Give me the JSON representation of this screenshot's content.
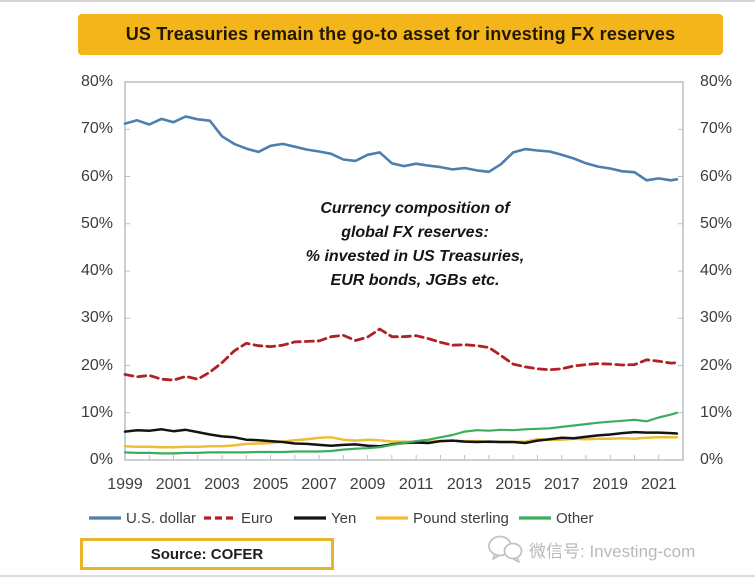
{
  "banner": {
    "title": "US Treasuries remain the go-to asset for investing FX reserves",
    "bg_color": "#F3B51A"
  },
  "annotation": {
    "lines": [
      "Currency composition of",
      "global FX reserves:",
      "% invested in US Treasuries,",
      "EUR bonds, JGBs etc."
    ]
  },
  "source_box": {
    "label": "Source: COFER",
    "border_color": "#E9B32B"
  },
  "watermark": {
    "icon": "wechat-icon",
    "text": "微信号: Investing-com",
    "color": "#b9b9b9"
  },
  "chart_data": {
    "type": "line",
    "title": "",
    "xlabel": "",
    "ylabel": "",
    "grid": false,
    "legend_position": "bottom",
    "xlim": [
      1999,
      2022
    ],
    "ylim": [
      0,
      80
    ],
    "x_ticks": [
      "1999",
      "2001",
      "2003",
      "2005",
      "2007",
      "2009",
      "2011",
      "2013",
      "2015",
      "2017",
      "2019",
      "2021"
    ],
    "y_ticks": [
      "0%",
      "10%",
      "20%",
      "30%",
      "40%",
      "50%",
      "60%",
      "70%",
      "80%"
    ],
    "x": [
      1999,
      1999.5,
      2000,
      2000.5,
      2001,
      2001.5,
      2002,
      2002.5,
      2003,
      2003.5,
      2004,
      2004.5,
      2005,
      2005.5,
      2006,
      2006.5,
      2007,
      2007.5,
      2008,
      2008.5,
      2009,
      2009.5,
      2010,
      2010.5,
      2011,
      2011.5,
      2012,
      2012.5,
      2013,
      2013.5,
      2014,
      2014.5,
      2015,
      2015.5,
      2016,
      2016.5,
      2017,
      2017.5,
      2018,
      2018.5,
      2019,
      2019.5,
      2020,
      2020.5,
      2021,
      2021.5,
      2021.75
    ],
    "series": [
      {
        "name": "U.S. dollar",
        "color": "#4D7FAE",
        "dash": "solid",
        "values": [
          71.2,
          71.9,
          71.0,
          72.2,
          71.5,
          72.7,
          72.1,
          71.8,
          68.5,
          66.9,
          65.9,
          65.2,
          66.5,
          66.9,
          66.3,
          65.7,
          65.3,
          64.8,
          63.6,
          63.3,
          64.6,
          65.1,
          62.8,
          62.2,
          62.7,
          62.3,
          62.0,
          61.5,
          61.8,
          61.3,
          61.0,
          62.6,
          65.1,
          65.8,
          65.5,
          65.3,
          64.6,
          63.8,
          62.8,
          62.1,
          61.7,
          61.1,
          60.9,
          59.2,
          59.6,
          59.2,
          59.4
        ]
      },
      {
        "name": "Euro",
        "color": "#B02025",
        "dash": "dashed",
        "values": [
          18.1,
          17.6,
          17.9,
          17.1,
          16.9,
          17.7,
          17.1,
          18.6,
          20.6,
          23.1,
          24.7,
          24.2,
          24.0,
          24.3,
          25.0,
          25.1,
          25.2,
          26.1,
          26.4,
          25.3,
          26.0,
          27.7,
          26.1,
          26.1,
          26.3,
          25.7,
          24.9,
          24.3,
          24.4,
          24.2,
          23.8,
          22.1,
          20.3,
          19.7,
          19.3,
          19.1,
          19.3,
          19.9,
          20.2,
          20.4,
          20.3,
          20.1,
          20.2,
          21.2,
          20.9,
          20.5,
          20.6
        ]
      },
      {
        "name": "Yen",
        "color": "#141414",
        "dash": "solid",
        "values": [
          6.0,
          6.3,
          6.2,
          6.5,
          6.1,
          6.4,
          5.9,
          5.4,
          5.0,
          4.8,
          4.3,
          4.2,
          4.0,
          3.8,
          3.5,
          3.4,
          3.2,
          3.0,
          3.2,
          3.3,
          3.0,
          2.9,
          3.3,
          3.6,
          3.7,
          3.6,
          4.0,
          4.1,
          3.9,
          3.8,
          3.9,
          3.8,
          3.8,
          3.6,
          4.1,
          4.4,
          4.7,
          4.6,
          4.9,
          5.2,
          5.4,
          5.7,
          5.9,
          5.8,
          5.8,
          5.7,
          5.6
        ]
      },
      {
        "name": "Pound sterling",
        "color": "#EDBE33",
        "dash": "solid",
        "values": [
          2.9,
          2.8,
          2.8,
          2.7,
          2.7,
          2.8,
          2.8,
          2.9,
          2.9,
          3.1,
          3.4,
          3.5,
          3.6,
          3.9,
          4.2,
          4.4,
          4.7,
          4.8,
          4.3,
          4.1,
          4.3,
          4.2,
          3.9,
          3.9,
          3.8,
          3.9,
          4.0,
          4.1,
          4.0,
          4.0,
          3.8,
          3.8,
          3.8,
          3.9,
          4.4,
          4.3,
          4.3,
          4.5,
          4.4,
          4.5,
          4.5,
          4.6,
          4.5,
          4.7,
          4.8,
          4.8,
          4.8
        ]
      },
      {
        "name": "Other",
        "color": "#3BAD5C",
        "dash": "solid",
        "values": [
          1.6,
          1.5,
          1.5,
          1.4,
          1.4,
          1.5,
          1.5,
          1.6,
          1.6,
          1.6,
          1.6,
          1.7,
          1.7,
          1.7,
          1.8,
          1.8,
          1.8,
          1.9,
          2.2,
          2.4,
          2.5,
          2.7,
          3.2,
          3.6,
          4.0,
          4.3,
          4.8,
          5.3,
          6.0,
          6.3,
          6.2,
          6.4,
          6.3,
          6.5,
          6.6,
          6.7,
          7.0,
          7.3,
          7.6,
          7.9,
          8.1,
          8.3,
          8.5,
          8.2,
          9.0,
          9.6,
          10.0
        ]
      }
    ]
  }
}
